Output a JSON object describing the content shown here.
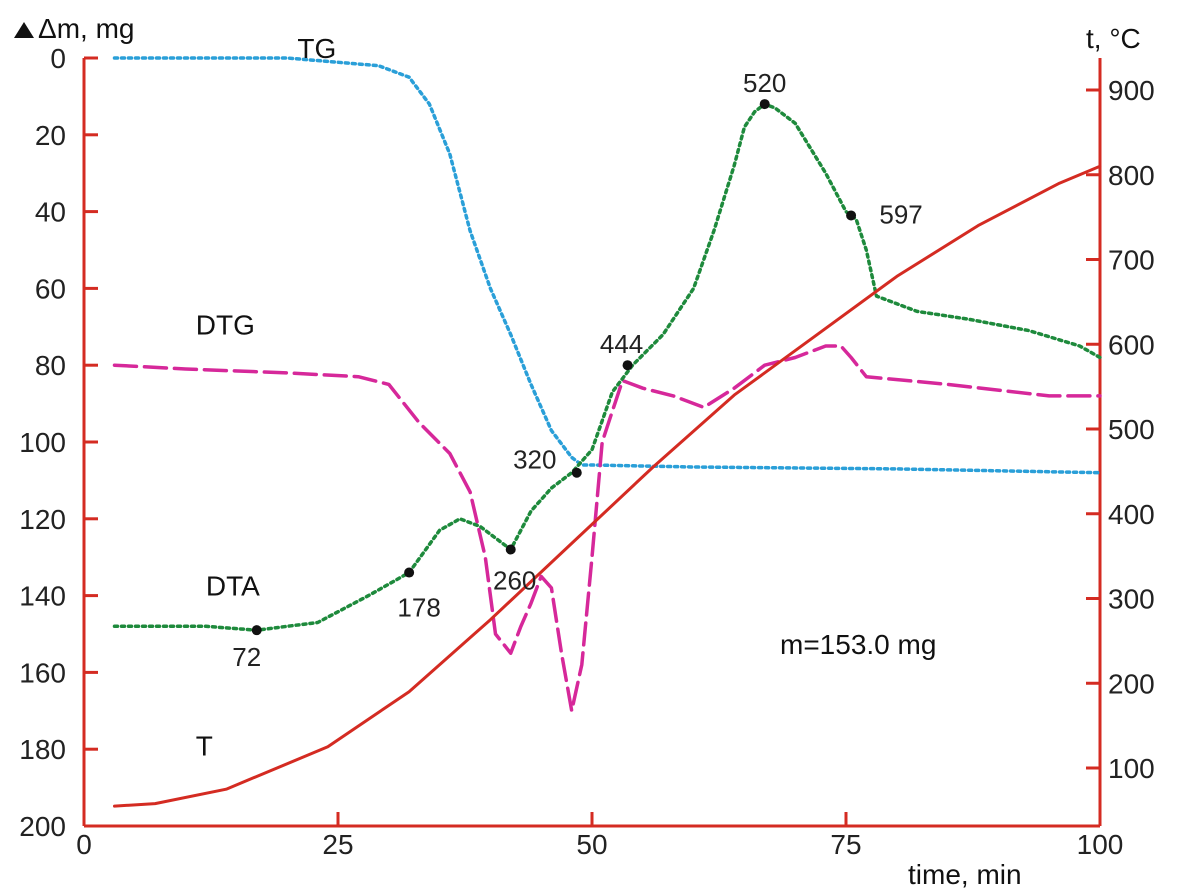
{
  "chart_data": {
    "type": "line",
    "title": "",
    "xlabel": "time, min",
    "ylabel_left": "Δm, mg",
    "ylabel_right": "t, °C",
    "xlim": [
      0,
      100
    ],
    "ylim_left": [
      0,
      200
    ],
    "ylim_right": [
      0,
      900
    ],
    "left_axis_inverted": true,
    "grid": false,
    "x_ticks": [
      {
        "value": 0,
        "label": "0"
      },
      {
        "value": 25,
        "label": "25"
      },
      {
        "value": 50,
        "label": "50"
      },
      {
        "value": 75,
        "label": "75"
      },
      {
        "value": 100,
        "label": "100"
      }
    ],
    "left_ticks": [
      {
        "value": 0,
        "label": "0"
      },
      {
        "value": 20,
        "label": "20"
      },
      {
        "value": 40,
        "label": "40"
      },
      {
        "value": 60,
        "label": "60"
      },
      {
        "value": 80,
        "label": "80"
      },
      {
        "value": 100,
        "label": "100"
      },
      {
        "value": 120,
        "label": "120"
      },
      {
        "value": 140,
        "label": "140"
      },
      {
        "value": 160,
        "label": "160"
      },
      {
        "value": 180,
        "label": "180"
      },
      {
        "value": 200,
        "label": "200"
      }
    ],
    "right_ticks": [
      {
        "value": 100,
        "label": "100"
      },
      {
        "value": 200,
        "label": "200"
      },
      {
        "value": 300,
        "label": "300"
      },
      {
        "value": 400,
        "label": "400"
      },
      {
        "value": 500,
        "label": "500"
      },
      {
        "value": 600,
        "label": "600"
      },
      {
        "value": 700,
        "label": "700"
      },
      {
        "value": 800,
        "label": "800"
      },
      {
        "value": 900,
        "label": "900"
      }
    ],
    "series": [
      {
        "name": "TG",
        "axis": "left",
        "style": "dotted",
        "color": "#2a9fd8",
        "label_at": [
          21,
          0
        ],
        "x": [
          3,
          20,
          29,
          32,
          34,
          36,
          38,
          40,
          42,
          44,
          46,
          48,
          49,
          50,
          60,
          80,
          100
        ],
        "y": [
          0,
          0,
          2,
          5,
          12,
          25,
          45,
          60,
          72,
          85,
          97,
          104,
          106,
          106,
          106.5,
          107,
          108
        ]
      },
      {
        "name": "DTG",
        "axis": "left",
        "style": "dashed",
        "color": "#d6289a",
        "label_at": [
          11,
          72
        ],
        "x": [
          3,
          10,
          20,
          27,
          30,
          33,
          36,
          38,
          39.5,
          40.5,
          42,
          43,
          44,
          45,
          46,
          47,
          48,
          49,
          50,
          51,
          52,
          53,
          55,
          58,
          61,
          64,
          67,
          70,
          73,
          74.5,
          75.5,
          77,
          85,
          95,
          100
        ],
        "y": [
          80,
          81,
          82,
          83,
          85,
          95,
          103,
          113,
          130,
          150,
          155,
          148,
          142,
          135,
          138,
          155,
          170,
          158,
          130,
          100,
          92,
          84,
          86,
          88,
          91,
          86,
          80,
          78,
          75,
          75,
          78,
          83,
          85,
          88,
          88
        ]
      },
      {
        "name": "DTA",
        "axis": "left",
        "style": "dotted",
        "color": "#1e8a3c",
        "label_at": [
          12,
          140
        ],
        "x": [
          3,
          12,
          17,
          20,
          23,
          28,
          32,
          35,
          37,
          39,
          42,
          44,
          46,
          48,
          50,
          52,
          54,
          57,
          60,
          62,
          64,
          65,
          66,
          67,
          68,
          70,
          73,
          75,
          76,
          77,
          78,
          82,
          87,
          93,
          98,
          100
        ],
        "y": [
          148,
          148,
          149,
          148,
          147,
          140,
          134,
          123,
          120,
          122,
          128,
          118,
          112,
          108,
          102,
          87,
          80,
          72,
          60,
          45,
          28,
          18,
          14,
          12,
          13,
          17,
          30,
          40,
          42,
          50,
          62,
          66,
          68,
          71,
          75,
          78
        ]
      },
      {
        "name": "T",
        "axis": "right",
        "style": "solid",
        "color": "#d42b22",
        "label_at": [
          11,
          115
        ],
        "x": [
          3,
          7,
          14,
          24,
          32,
          40,
          48,
          56,
          64,
          72,
          80,
          88,
          96,
          100
        ],
        "y": [
          55,
          58,
          75,
          125,
          190,
          275,
          365,
          455,
          540,
          610,
          680,
          740,
          790,
          810
        ]
      }
    ],
    "annotations": [
      {
        "label": "72",
        "series": "DTA",
        "x": 17,
        "y": 149,
        "dx": -10,
        "dy": 36
      },
      {
        "label": "178",
        "series": "DTA",
        "x": 32,
        "y": 134,
        "dx": 10,
        "dy": 44
      },
      {
        "label": "260",
        "series": "DTA",
        "x": 42,
        "y": 128,
        "dx": 4,
        "dy": 40
      },
      {
        "label": "320",
        "series": "DTA",
        "x": 48.5,
        "y": 108,
        "dx": -42,
        "dy": -4
      },
      {
        "label": "444",
        "series": "DTA",
        "x": 53.5,
        "y": 80,
        "dx": -6,
        "dy": -12
      },
      {
        "label": "520",
        "series": "DTA",
        "x": 67,
        "y": 12,
        "dx": 0,
        "dy": -12
      },
      {
        "label": "597",
        "series": "DTA",
        "x": 75.5,
        "y": 41,
        "dx": 50,
        "dy": 8
      }
    ],
    "text_box": "m=153.0 mg"
  }
}
